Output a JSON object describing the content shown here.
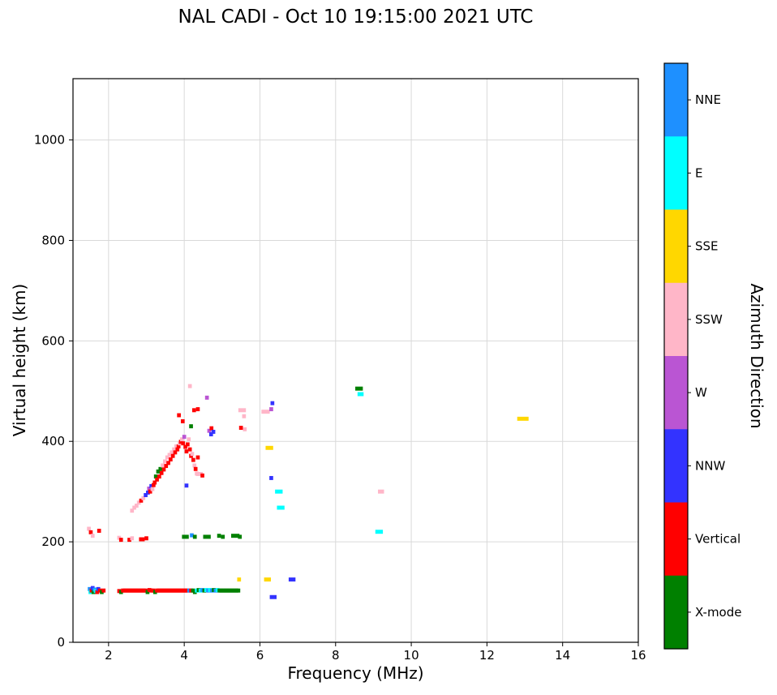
{
  "title": "NAL CADI - Oct 10 19:15:00 2021 UTC",
  "chart_data": {
    "type": "scatter",
    "title": "NAL CADI - Oct 10 19:15:00 2021 UTC",
    "xlabel": "Frequency (MHz)",
    "ylabel": "Virtual height (km)",
    "legend_title": "Azimuth Direction",
    "legend_position": "right-colorbar",
    "xlim": [
      1.06,
      16
    ],
    "ylim": [
      0,
      1122
    ],
    "x_ticks": [
      2,
      4,
      6,
      8,
      10,
      12,
      14,
      16
    ],
    "y_ticks": [
      0,
      200,
      400,
      600,
      800,
      1000
    ],
    "grid": true,
    "grid_color": "#d9d9d9",
    "directions": [
      {
        "label": "NNE",
        "color": "#1E90FF"
      },
      {
        "label": "E",
        "color": "#00FFFF"
      },
      {
        "label": "SSE",
        "color": "#FFD700"
      },
      {
        "label": "SSW",
        "color": "#FFB6C8"
      },
      {
        "label": "W",
        "color": "#BA55D3"
      },
      {
        "label": "NNW",
        "color": "#3333FF"
      },
      {
        "label": "Vertical",
        "color": "#FF0000"
      },
      {
        "label": "X-mode",
        "color": "#008000"
      }
    ],
    "point_unit": {
      "freq_mhz_width": 0.1,
      "height_km": 8
    },
    "points_format": [
      "freq_mhz",
      "virtual_height_km",
      "direction_index",
      "optional_width_mhz"
    ],
    "points": [
      [
        1.5,
        106,
        0
      ],
      [
        1.52,
        100,
        1
      ],
      [
        1.55,
        103,
        6
      ],
      [
        1.58,
        108,
        5
      ],
      [
        1.6,
        100,
        7
      ],
      [
        1.63,
        105,
        0
      ],
      [
        1.66,
        102,
        1
      ],
      [
        1.7,
        100,
        6
      ],
      [
        1.73,
        106,
        5
      ],
      [
        1.77,
        103,
        6
      ],
      [
        1.82,
        100,
        7
      ],
      [
        1.87,
        103,
        6
      ],
      [
        2.28,
        102,
        6
      ],
      [
        2.33,
        100,
        7
      ],
      [
        2.38,
        103,
        6
      ],
      [
        2.43,
        103,
        6
      ],
      [
        2.48,
        103,
        6
      ],
      [
        2.53,
        103,
        6
      ],
      [
        2.58,
        103,
        6
      ],
      [
        2.63,
        103,
        6
      ],
      [
        2.68,
        103,
        6
      ],
      [
        2.73,
        103,
        6
      ],
      [
        2.78,
        103,
        6
      ],
      [
        2.83,
        103,
        6
      ],
      [
        2.88,
        103,
        6
      ],
      [
        2.93,
        103,
        6
      ],
      [
        2.98,
        103,
        6
      ],
      [
        3.03,
        100,
        7
      ],
      [
        3.08,
        104,
        6
      ],
      [
        3.13,
        103,
        6
      ],
      [
        3.18,
        103,
        6
      ],
      [
        3.23,
        100,
        7
      ],
      [
        3.28,
        103,
        6
      ],
      [
        3.33,
        103,
        6
      ],
      [
        3.38,
        103,
        6
      ],
      [
        3.43,
        103,
        6
      ],
      [
        3.48,
        103,
        6
      ],
      [
        3.53,
        103,
        6
      ],
      [
        3.58,
        103,
        6
      ],
      [
        3.63,
        103,
        6
      ],
      [
        3.68,
        103,
        6
      ],
      [
        3.73,
        103,
        6
      ],
      [
        3.78,
        103,
        6
      ],
      [
        3.83,
        103,
        6
      ],
      [
        3.88,
        103,
        6
      ],
      [
        3.93,
        103,
        6
      ],
      [
        3.98,
        103,
        6
      ],
      [
        4.03,
        103,
        6
      ],
      [
        4.08,
        103,
        6
      ],
      [
        4.13,
        103,
        0
      ],
      [
        4.18,
        103,
        6
      ],
      [
        4.23,
        103,
        7
      ],
      [
        4.28,
        100,
        7
      ],
      [
        4.33,
        103,
        1
      ],
      [
        4.38,
        104,
        7
      ],
      [
        4.43,
        103,
        1
      ],
      [
        4.48,
        104,
        0
      ],
      [
        4.53,
        103,
        7
      ],
      [
        4.58,
        104,
        1
      ],
      [
        4.63,
        103,
        0
      ],
      [
        4.68,
        104,
        1
      ],
      [
        4.73,
        103,
        0
      ],
      [
        4.78,
        104,
        7
      ],
      [
        4.83,
        103,
        0
      ],
      [
        4.88,
        104,
        1
      ],
      [
        4.93,
        103,
        7
      ],
      [
        4.98,
        103,
        7
      ],
      [
        5.03,
        103,
        7
      ],
      [
        5.08,
        103,
        7
      ],
      [
        5.13,
        103,
        7
      ],
      [
        5.18,
        103,
        7
      ],
      [
        5.23,
        103,
        7
      ],
      [
        5.28,
        103,
        7
      ],
      [
        5.33,
        103,
        7
      ],
      [
        5.38,
        103,
        7
      ],
      [
        5.43,
        103,
        7
      ],
      [
        5.45,
        125,
        2
      ],
      [
        6.2,
        125,
        2,
        0.18
      ],
      [
        6.85,
        125,
        5,
        0.18
      ],
      [
        6.35,
        90,
        5,
        0.18
      ],
      [
        1.48,
        226,
        3
      ],
      [
        1.53,
        219,
        6
      ],
      [
        1.58,
        212,
        3
      ],
      [
        1.75,
        222,
        6
      ],
      [
        2.28,
        208,
        3
      ],
      [
        2.33,
        204,
        6
      ],
      [
        2.55,
        204,
        6
      ],
      [
        2.62,
        207,
        3
      ],
      [
        2.88,
        205,
        6,
        0.15
      ],
      [
        3.0,
        207,
        6
      ],
      [
        4.03,
        210,
        7,
        0.18
      ],
      [
        4.2,
        213,
        0
      ],
      [
        4.28,
        210,
        7
      ],
      [
        4.6,
        210,
        7,
        0.2
      ],
      [
        4.92,
        212,
        7
      ],
      [
        5.02,
        210,
        7
      ],
      [
        5.35,
        212,
        7,
        0.22
      ],
      [
        5.47,
        210,
        7
      ],
      [
        2.62,
        262,
        3
      ],
      [
        2.68,
        268,
        3
      ],
      [
        2.74,
        272,
        3
      ],
      [
        2.8,
        278,
        3
      ],
      [
        2.86,
        282,
        6
      ],
      [
        2.92,
        287,
        3
      ],
      [
        2.98,
        293,
        5
      ],
      [
        3.04,
        298,
        5
      ],
      [
        3.07,
        306,
        4
      ],
      [
        3.1,
        300,
        6
      ],
      [
        3.13,
        311,
        5
      ],
      [
        3.16,
        305,
        3
      ],
      [
        3.19,
        313,
        6
      ],
      [
        3.22,
        318,
        6
      ],
      [
        3.25,
        330,
        7
      ],
      [
        3.28,
        324,
        6
      ],
      [
        3.31,
        340,
        7
      ],
      [
        3.34,
        330,
        6
      ],
      [
        3.37,
        345,
        7
      ],
      [
        3.4,
        337,
        6
      ],
      [
        3.43,
        352,
        3
      ],
      [
        3.46,
        344,
        6
      ],
      [
        3.49,
        360,
        3
      ],
      [
        3.52,
        351,
        6
      ],
      [
        3.55,
        368,
        3
      ],
      [
        3.58,
        357,
        6
      ],
      [
        3.61,
        373,
        3
      ],
      [
        3.64,
        364,
        6
      ],
      [
        3.67,
        378,
        3
      ],
      [
        3.7,
        371,
        6
      ],
      [
        3.73,
        384,
        3
      ],
      [
        3.76,
        378,
        6
      ],
      [
        3.79,
        390,
        3
      ],
      [
        3.82,
        384,
        6
      ],
      [
        3.85,
        390,
        6
      ],
      [
        3.88,
        396,
        3
      ],
      [
        3.91,
        399,
        6
      ],
      [
        3.94,
        404,
        3
      ],
      [
        3.97,
        396,
        6
      ],
      [
        4.0,
        409,
        4
      ],
      [
        4.03,
        389,
        6
      ],
      [
        4.06,
        380,
        6
      ],
      [
        4.06,
        312,
        5
      ],
      [
        4.09,
        394,
        6
      ],
      [
        4.12,
        404,
        3
      ],
      [
        4.15,
        384,
        6
      ],
      [
        4.18,
        371,
        6
      ],
      [
        4.21,
        375,
        3
      ],
      [
        4.24,
        363,
        6
      ],
      [
        4.27,
        352,
        3
      ],
      [
        4.3,
        345,
        6
      ],
      [
        4.33,
        336,
        3
      ],
      [
        4.36,
        368,
        6
      ],
      [
        4.4,
        335,
        3,
        0.18
      ],
      [
        4.48,
        332,
        6
      ],
      [
        4.15,
        510,
        3
      ],
      [
        3.86,
        452,
        6
      ],
      [
        3.96,
        440,
        6
      ],
      [
        4.18,
        430,
        7
      ],
      [
        4.26,
        462,
        6
      ],
      [
        4.36,
        464,
        6
      ],
      [
        4.6,
        487,
        4
      ],
      [
        4.66,
        421,
        4
      ],
      [
        4.71,
        414,
        5
      ],
      [
        4.72,
        426,
        6
      ],
      [
        4.77,
        419,
        5
      ],
      [
        5.53,
        462,
        3,
        0.2
      ],
      [
        5.58,
        450,
        3
      ],
      [
        5.5,
        427,
        6
      ],
      [
        5.6,
        424,
        3
      ],
      [
        6.15,
        459,
        3,
        0.22
      ],
      [
        6.3,
        464,
        4
      ],
      [
        6.33,
        476,
        5
      ],
      [
        6.25,
        387,
        2,
        0.2
      ],
      [
        6.3,
        327,
        5
      ],
      [
        6.5,
        300,
        1,
        0.2
      ],
      [
        6.55,
        268,
        1,
        0.2
      ],
      [
        8.62,
        505,
        7,
        0.2
      ],
      [
        8.66,
        494,
        1,
        0.16
      ],
      [
        9.2,
        300,
        3,
        0.16
      ],
      [
        9.15,
        220,
        1,
        0.2
      ],
      [
        12.95,
        445,
        2,
        0.3
      ]
    ]
  }
}
